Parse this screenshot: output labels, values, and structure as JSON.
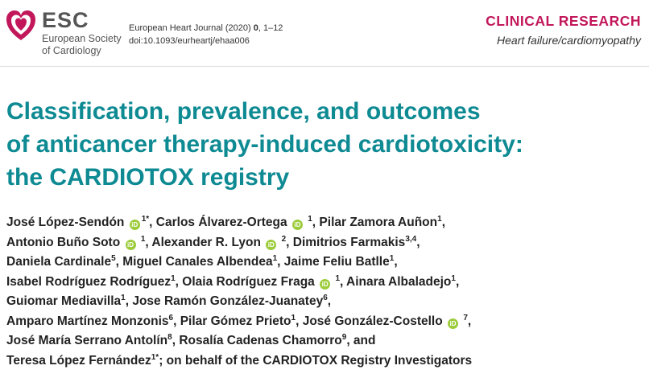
{
  "header": {
    "logo_abbrev": "ESC",
    "society_line1": "European Society",
    "society_line2": "of Cardiology",
    "journal_citation_pre": "European Heart Journal (2020) ",
    "journal_citation_vol": "0",
    "journal_citation_post": ", 1–12",
    "doi": "doi:10.1093/eurheartj/ehaa006",
    "section_title": "CLINICAL RESEARCH",
    "section_subtitle": "Heart failure/cardiomyopathy",
    "brand_color": "#c2185b"
  },
  "title": {
    "line1": "Classification, prevalence, and outcomes",
    "line2": "of anticancer therapy-induced cardiotoxicity:",
    "line3": "the CARDIOTOX registry",
    "color": "#0e8a93"
  },
  "orcid_label": "iD",
  "authors": {
    "l1": {
      "a1": "José López-Sendón",
      "a1s": "1*",
      "sep1": ",  ",
      "a2": "Carlos Álvarez-Ortega",
      "a2s": "1",
      "sep2": ", ",
      "a3": "Pilar Zamora Auñon",
      "a3s": "1",
      "sep3": ","
    },
    "l2": {
      "a1": "Antonio Buño Soto",
      "a1s": "1",
      "sep1": ",  ",
      "a2": "Alexander R. Lyon",
      "a2s": "2",
      "sep2": ", ",
      "a3": "Dimitrios Farmakis",
      "a3s": "3,4",
      "sep3": ","
    },
    "l3": {
      "a1": "Daniela Cardinale",
      "a1s": "5",
      "sep1": ", ",
      "a2": "Miguel  Canales Albendea",
      "a2s": "1",
      "sep2": ", ",
      "a3": "Jaime Feliu Batlle",
      "a3s": "1",
      "sep3": ","
    },
    "l4": {
      "a1": "Isabel Rodríguez Rodríguez",
      "a1s": "1",
      "sep1": ",  ",
      "a2": "Olaia Rodríguez Fraga",
      "a2s": "1",
      "sep2": ", ",
      "a3": "Ainara Albaladejo",
      "a3s": "1",
      "sep3": ","
    },
    "l5": {
      "a1": "Guiomar Mediavilla",
      "a1s": "1",
      "sep1": ", ",
      "a2": "Jose Ramón González-Juanatey",
      "a2s": "6",
      "sep2": ","
    },
    "l6": {
      "a1": "Amparo Martínez Monzonis",
      "a1s": "6",
      "sep1": ", ",
      "a2": "Pilar Gómez Prieto",
      "a2s": "1",
      "sep2": ",  ",
      "a3": "José González-Costello",
      "a3s": "7",
      "sep3": ","
    },
    "l7": {
      "a1": "José María Serrano Antolín",
      "a1s": "8",
      "sep1": ", ",
      "a2": "Rosalía Cadenas Chamorro",
      "a2s": "9",
      "sep2": ", and"
    },
    "l8": {
      "a1": "Teresa López Fernández",
      "a1s": "1*",
      "rest": "; on behalf of the CARDIOTOX Registry Investigators"
    }
  }
}
